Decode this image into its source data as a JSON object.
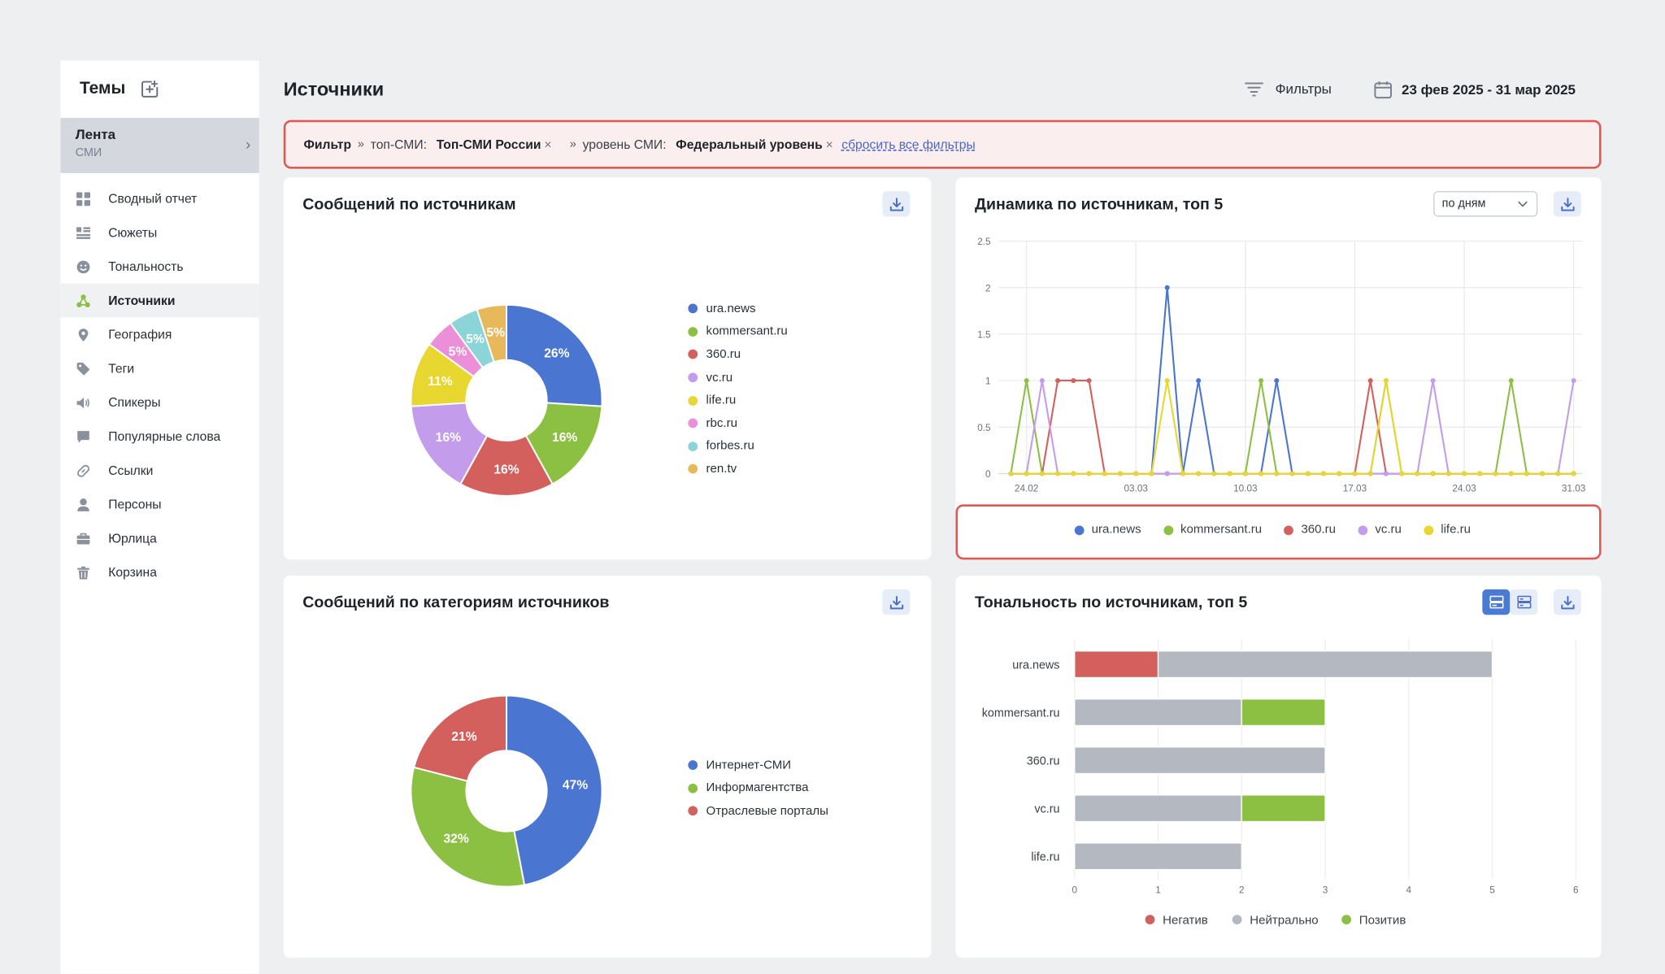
{
  "sidebar": {
    "title": "Темы",
    "feed": {
      "title": "Лента",
      "subtitle": "СМИ"
    },
    "items": [
      {
        "label": "Сводный отчет",
        "icon": "grid-icon",
        "active": false
      },
      {
        "label": "Сюжеты",
        "icon": "list-icon",
        "active": false
      },
      {
        "label": "Тональность",
        "icon": "smile-icon",
        "active": false
      },
      {
        "label": "Источники",
        "icon": "sources-icon",
        "active": true
      },
      {
        "label": "География",
        "icon": "location-pin-icon",
        "active": false
      },
      {
        "label": "Теги",
        "icon": "tag-icon",
        "active": false
      },
      {
        "label": "Спикеры",
        "icon": "speaker-icon",
        "active": false
      },
      {
        "label": "Популярные слова",
        "icon": "chat-bubble-icon",
        "active": false
      },
      {
        "label": "Ссылки",
        "icon": "link-icon",
        "active": false
      },
      {
        "label": "Персоны",
        "icon": "person-icon",
        "active": false
      },
      {
        "label": "Юрлица",
        "icon": "briefcase-icon",
        "active": false
      },
      {
        "label": "Корзина",
        "icon": "trash-icon",
        "active": false
      }
    ]
  },
  "header": {
    "title": "Источники",
    "filters_label": "Фильтры",
    "date_range": "23 фев 2025 - 31 мар 2025"
  },
  "filter_bar": {
    "label": "Фильтр",
    "f1_key": "топ-СМИ:",
    "f1_value": "Топ-СМИ России",
    "f2_key": "уровень СМИ:",
    "f2_value": "Федеральный уровень",
    "reset": "сбросить все фильтры"
  },
  "cards": {
    "sources": {
      "title": "Сообщений по источникам"
    },
    "dynamics": {
      "title": "Динамика по источникам, топ 5",
      "period_select": "по дням"
    },
    "categories": {
      "title": "Сообщений по категориям источников"
    },
    "tonality": {
      "title": "Тональность по источникам, топ 5"
    }
  },
  "colors": {
    "ura.news": "#4a76d2",
    "kommersant.ru": "#8cc043",
    "360.ru": "#d4605d",
    "vc.ru": "#c39ceb",
    "life.ru": "#e8d631",
    "rbc.ru": "#ea8fd8",
    "forbes.ru": "#8bd5d9",
    "ren.tv": "#e7b95a",
    "neutral": "#b4b8c0",
    "accent": "#4a7bd4",
    "highlight_border": "#e05a55"
  },
  "chart_data": [
    {
      "type": "pie",
      "title": "Сообщений по источникам",
      "categories": [
        "ura.news",
        "kommersant.ru",
        "360.ru",
        "vc.ru",
        "life.ru",
        "rbc.ru",
        "forbes.ru",
        "ren.tv"
      ],
      "values": [
        26,
        16,
        16,
        16,
        11,
        5,
        5,
        5
      ],
      "labels": [
        "26%",
        "16%",
        "16%",
        "16%",
        "11%",
        "5%",
        "5%",
        "5%"
      ],
      "donut": true,
      "legend": "right"
    },
    {
      "type": "line",
      "title": "Динамика по источникам, топ 5",
      "x": [
        "23.02",
        "24.02",
        "25.02",
        "26.02",
        "27.02",
        "28.02",
        "01.03",
        "02.03",
        "03.03",
        "04.03",
        "05.03",
        "06.03",
        "07.03",
        "08.03",
        "09.03",
        "10.03",
        "11.03",
        "12.03",
        "13.03",
        "14.03",
        "15.03",
        "16.03",
        "17.03",
        "18.03",
        "19.03",
        "20.03",
        "21.03",
        "22.03",
        "23.03",
        "24.03",
        "25.03",
        "26.03",
        "27.03",
        "28.03",
        "29.03",
        "30.03",
        "31.03"
      ],
      "x_ticks": [
        "24.02",
        "03.03",
        "10.03",
        "17.03",
        "24.03",
        "31.03"
      ],
      "y_ticks": [
        "0",
        "0.5",
        "1",
        "1.5",
        "2",
        "2.5"
      ],
      "ylim": [
        0,
        2.5
      ],
      "grid": true,
      "legend": "bottom",
      "series": [
        {
          "name": "ura.news",
          "values": [
            0,
            0,
            0,
            0,
            0,
            0,
            0,
            0,
            0,
            0,
            2,
            0,
            1,
            0,
            0,
            0,
            0,
            1,
            0,
            0,
            0,
            0,
            0,
            0,
            0,
            0,
            0,
            0,
            0,
            0,
            0,
            0,
            0,
            0,
            0,
            0,
            0
          ]
        },
        {
          "name": "kommersant.ru",
          "values": [
            0,
            1,
            0,
            0,
            0,
            0,
            0,
            0,
            0,
            0,
            0,
            0,
            0,
            0,
            0,
            0,
            1,
            0,
            0,
            0,
            0,
            0,
            0,
            0,
            1,
            0,
            0,
            0,
            0,
            0,
            0,
            0,
            1,
            0,
            0,
            0,
            0
          ]
        },
        {
          "name": "360.ru",
          "values": [
            0,
            0,
            0,
            1,
            1,
            1,
            0,
            0,
            0,
            0,
            0,
            0,
            0,
            0,
            0,
            0,
            0,
            0,
            0,
            0,
            0,
            0,
            0,
            1,
            0,
            0,
            0,
            0,
            0,
            0,
            0,
            0,
            0,
            0,
            0,
            0,
            0
          ]
        },
        {
          "name": "vc.ru",
          "values": [
            0,
            0,
            1,
            0,
            0,
            0,
            0,
            0,
            0,
            0,
            0,
            0,
            0,
            0,
            0,
            0,
            0,
            0,
            0,
            0,
            0,
            0,
            0,
            0,
            0,
            0,
            0,
            1,
            0,
            0,
            0,
            0,
            0,
            0,
            0,
            0,
            1
          ]
        },
        {
          "name": "life.ru",
          "values": [
            0,
            0,
            0,
            0,
            0,
            0,
            0,
            0,
            0,
            0,
            1,
            0,
            0,
            0,
            0,
            0,
            0,
            0,
            0,
            0,
            0,
            0,
            0,
            0,
            1,
            0,
            0,
            0,
            0,
            0,
            0,
            0,
            0,
            0,
            0,
            0,
            0
          ]
        }
      ]
    },
    {
      "type": "pie",
      "title": "Сообщений по категориям источников",
      "categories": [
        "Интернет-СМИ",
        "Информагентства",
        "Отраслевые порталы"
      ],
      "values": [
        47,
        32,
        21
      ],
      "labels": [
        "47%",
        "32%",
        "21%"
      ],
      "colors": [
        "#4a76d2",
        "#8cc043",
        "#d4605d"
      ],
      "donut": true,
      "legend": "right"
    },
    {
      "type": "bar",
      "orientation": "horizontal",
      "stacked": true,
      "title": "Тональность по источникам, топ 5",
      "categories": [
        "ura.news",
        "kommersant.ru",
        "360.ru",
        "vc.ru",
        "life.ru"
      ],
      "x_ticks": [
        "0",
        "1",
        "2",
        "3",
        "4",
        "5",
        "6"
      ],
      "xlim": [
        0,
        6
      ],
      "legend": "bottom",
      "series": [
        {
          "name": "Негатив",
          "color": "#d4605d",
          "values": [
            1,
            0,
            0,
            0,
            0
          ]
        },
        {
          "name": "Нейтрально",
          "color": "#b4b8c0",
          "values": [
            4,
            2,
            3,
            2,
            2
          ]
        },
        {
          "name": "Позитив",
          "color": "#8cc043",
          "values": [
            0,
            1,
            0,
            1,
            0
          ]
        }
      ]
    }
  ]
}
